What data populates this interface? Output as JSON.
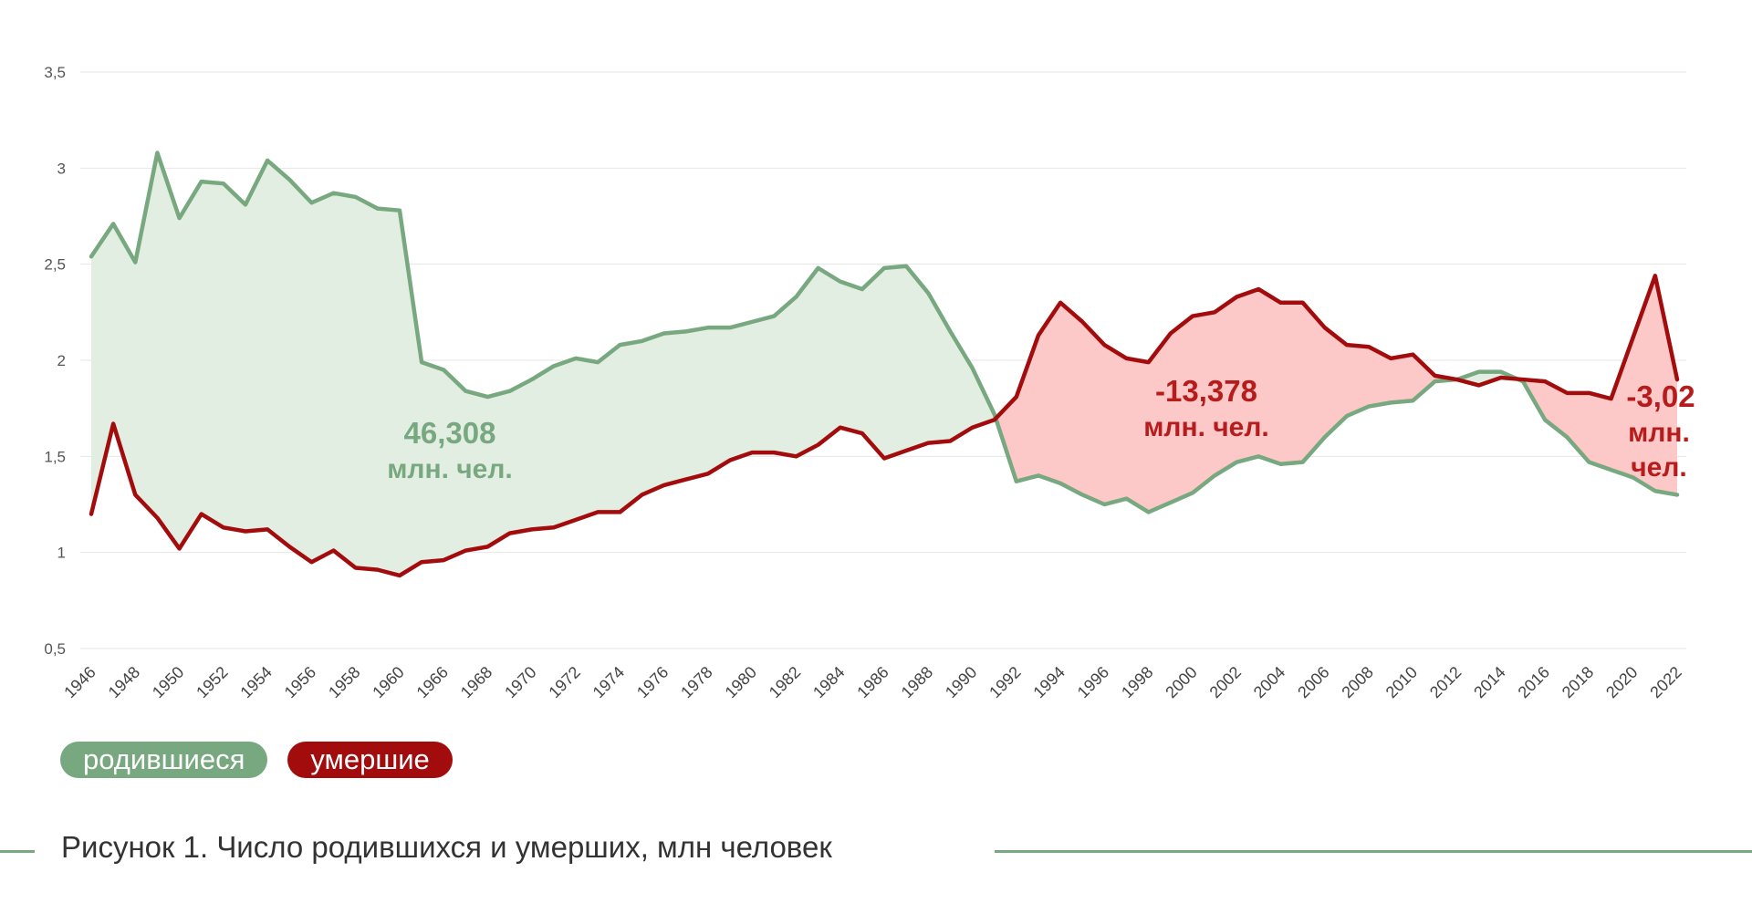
{
  "chart_data": {
    "type": "line",
    "title": "",
    "xlabel": "",
    "ylabel": "",
    "ylim": [
      0.5,
      3.5
    ],
    "yticks": [
      "0,5",
      "1",
      "1,5",
      "2",
      "2,5",
      "3",
      "3,5"
    ],
    "ytick_values": [
      0.5,
      1,
      1.5,
      2,
      2.5,
      3,
      3.5
    ],
    "x_tick_labels": [
      "1946",
      "1948",
      "1950",
      "1952",
      "1954",
      "1956",
      "1958",
      "1960",
      "1966",
      "1968",
      "1970",
      "1972",
      "1974",
      "1976",
      "1978",
      "1980",
      "1982",
      "1984",
      "1986",
      "1988",
      "1990",
      "1992",
      "1994",
      "1996",
      "1998",
      "2000",
      "2002",
      "2004",
      "2006",
      "2008",
      "2010",
      "2012",
      "2014",
      "2016",
      "2018",
      "2020",
      "2022"
    ],
    "x": [
      "1946",
      "1947",
      "1948",
      "1949",
      "1950",
      "1951",
      "1952",
      "1953",
      "1954",
      "1955",
      "1956",
      "1957",
      "1958",
      "1959",
      "1960",
      "1965",
      "1966",
      "1967",
      "1968",
      "1969",
      "1970",
      "1971",
      "1972",
      "1973",
      "1974",
      "1975",
      "1976",
      "1977",
      "1978",
      "1979",
      "1980",
      "1981",
      "1982",
      "1983",
      "1984",
      "1985",
      "1986",
      "1987",
      "1988",
      "1989",
      "1990",
      "1991",
      "1992",
      "1993",
      "1994",
      "1995",
      "1996",
      "1997",
      "1998",
      "1999",
      "2000",
      "2001",
      "2002",
      "2003",
      "2004",
      "2005",
      "2006",
      "2007",
      "2008",
      "2009",
      "2010",
      "2011",
      "2012",
      "2013",
      "2014",
      "2015",
      "2016",
      "2017",
      "2018",
      "2019",
      "2020",
      "2021",
      "2022"
    ],
    "grid": true,
    "legend": "bottom-left",
    "series": [
      {
        "name": "родившиеся",
        "color": "#78a87f",
        "values": [
          2.54,
          2.71,
          2.51,
          3.08,
          2.74,
          2.93,
          2.92,
          2.81,
          3.04,
          2.94,
          2.82,
          2.87,
          2.85,
          2.79,
          2.78,
          1.99,
          1.95,
          1.84,
          1.81,
          1.84,
          1.9,
          1.97,
          2.01,
          1.99,
          2.08,
          2.1,
          2.14,
          2.15,
          2.17,
          2.17,
          2.2,
          2.23,
          2.33,
          2.48,
          2.41,
          2.37,
          2.48,
          2.49,
          2.35,
          2.15,
          1.96,
          1.72,
          1.37,
          1.4,
          1.36,
          1.3,
          1.25,
          1.28,
          1.21,
          1.26,
          1.31,
          1.4,
          1.47,
          1.5,
          1.46,
          1.47,
          1.6,
          1.71,
          1.76,
          1.78,
          1.79,
          1.89,
          1.9,
          1.94,
          1.94,
          1.89,
          1.69,
          1.6,
          1.47,
          1.43,
          1.39,
          1.32,
          1.3
        ]
      },
      {
        "name": "умершие",
        "color": "#a30c0c",
        "values": [
          1.2,
          1.67,
          1.3,
          1.18,
          1.02,
          1.2,
          1.13,
          1.11,
          1.12,
          1.03,
          0.95,
          1.01,
          0.92,
          0.91,
          0.88,
          0.95,
          0.96,
          1.01,
          1.03,
          1.1,
          1.12,
          1.13,
          1.17,
          1.21,
          1.21,
          1.3,
          1.35,
          1.38,
          1.41,
          1.48,
          1.52,
          1.52,
          1.5,
          1.56,
          1.65,
          1.62,
          1.49,
          1.53,
          1.57,
          1.58,
          1.65,
          1.69,
          1.81,
          2.13,
          2.3,
          2.2,
          2.08,
          2.01,
          1.99,
          2.14,
          2.23,
          2.25,
          2.33,
          2.37,
          2.3,
          2.3,
          2.17,
          2.08,
          2.07,
          2.01,
          2.03,
          1.92,
          1.9,
          1.87,
          1.91,
          1.9,
          1.89,
          1.83,
          1.83,
          1.8,
          2.12,
          2.44,
          1.9
        ]
      }
    ],
    "annotations": [
      {
        "value": "46,308",
        "unit": "млн. чел.",
        "color": "#78a87f"
      },
      {
        "value": "-13,378",
        "unit": "млн. чел.",
        "color": "#b71c1c"
      },
      {
        "value": "-3,02",
        "unit_line1": "млн.",
        "unit_line2": "чел.",
        "color": "#b71c1c"
      }
    ]
  },
  "legend_items": [
    {
      "label": "родившиеся",
      "color": "#78a87f"
    },
    {
      "label": "умершие",
      "color": "#a30c0c"
    }
  ],
  "caption": "Рисунок 1. Число родившихся и умерших, млн человек"
}
